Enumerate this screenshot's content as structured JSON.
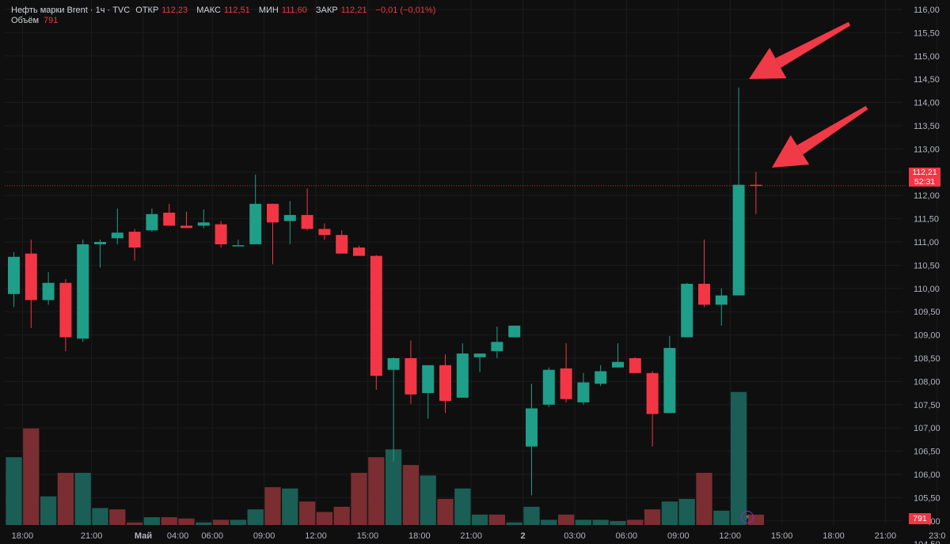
{
  "legend": {
    "symbol": "Нефть марки Brent · 1ч · TVC",
    "open_label": "ОТКР",
    "open": "112,23",
    "high_label": "МАКС",
    "high": "112,51",
    "low_label": "МИН",
    "low": "111,60",
    "close_label": "ЗАКР",
    "close": "112,21",
    "change": "−0,01 (−0,01%)",
    "volume_label": "Объём",
    "volume": "791"
  },
  "price_label": {
    "price": "112,21",
    "countdown": "52:31"
  },
  "volume_label_value": "791",
  "colors": {
    "up": "#1f9e89",
    "down": "#f23645",
    "up_vol": "#1b5e55",
    "down_vol": "#7a2e32",
    "background": "#0f0f0f"
  },
  "chart_data": {
    "type": "candlestick",
    "y_axis": {
      "range": [
        104.0,
        116.2
      ],
      "tick_labels": [
        "116,00",
        "115,50",
        "115,00",
        "114,50",
        "114,00",
        "113,50",
        "113,00",
        "112,50",
        "112,00",
        "111,50",
        "111,00",
        "110,50",
        "110,00",
        "109,50",
        "109,00",
        "108,50",
        "108,00",
        "107,50",
        "107,00",
        "106,50",
        "106,00",
        "105,50",
        "105,00",
        "104,50"
      ],
      "ticks": [
        116.0,
        115.5,
        115.0,
        114.5,
        114.0,
        113.5,
        113.0,
        112.5,
        112.0,
        111.5,
        111.0,
        110.5,
        110.0,
        109.5,
        109.0,
        108.5,
        108.0,
        107.5,
        107.0,
        106.5,
        106.0,
        105.5,
        105.0,
        104.5
      ]
    },
    "x_axis": {
      "tick_labels": [
        "18:00",
        "21:00",
        "Май",
        "04:00",
        "06:00",
        "09:00",
        "12:00",
        "15:00",
        "18:00",
        "21:00",
        "2",
        "03:00",
        "06:00",
        "09:00",
        "12:00",
        "15:00",
        "18:00",
        "21:00",
        "23:0"
      ],
      "tick_bar_index": [
        0.5,
        4.5,
        7.5,
        9.5,
        11.5,
        14.5,
        17.5,
        20.5,
        23.5,
        26.5,
        29.5,
        32.5,
        35.5,
        38.5,
        41.5,
        44.5,
        47.5,
        50.5,
        53.5
      ]
    },
    "candles": [
      {
        "o": 109.88,
        "h": 110.78,
        "l": 109.6,
        "c": 110.68
      },
      {
        "o": 110.75,
        "h": 111.05,
        "l": 109.15,
        "c": 109.75
      },
      {
        "o": 109.75,
        "h": 110.35,
        "l": 109.65,
        "c": 110.12
      },
      {
        "o": 110.12,
        "h": 110.2,
        "l": 108.65,
        "c": 108.95
      },
      {
        "o": 108.92,
        "h": 111.05,
        "l": 108.85,
        "c": 110.95
      },
      {
        "o": 110.95,
        "h": 111.05,
        "l": 110.45,
        "c": 111.0
      },
      {
        "o": 111.08,
        "h": 111.72,
        "l": 110.95,
        "c": 111.2
      },
      {
        "o": 111.22,
        "h": 111.28,
        "l": 110.6,
        "c": 110.88
      },
      {
        "o": 111.25,
        "h": 111.72,
        "l": 111.22,
        "c": 111.6
      },
      {
        "o": 111.63,
        "h": 111.82,
        "l": 111.35,
        "c": 111.35
      },
      {
        "o": 111.35,
        "h": 111.65,
        "l": 111.3,
        "c": 111.3
      },
      {
        "o": 111.35,
        "h": 111.7,
        "l": 111.3,
        "c": 111.42
      },
      {
        "o": 111.38,
        "h": 111.45,
        "l": 110.88,
        "c": 110.95
      },
      {
        "o": 110.93,
        "h": 111.05,
        "l": 110.93,
        "c": 110.93
      },
      {
        "o": 110.95,
        "h": 112.45,
        "l": 110.95,
        "c": 111.82
      },
      {
        "o": 111.82,
        "h": 111.82,
        "l": 110.52,
        "c": 111.42
      },
      {
        "o": 111.45,
        "h": 111.88,
        "l": 110.95,
        "c": 111.58
      },
      {
        "o": 111.58,
        "h": 112.15,
        "l": 111.25,
        "c": 111.28
      },
      {
        "o": 111.28,
        "h": 111.4,
        "l": 111.05,
        "c": 111.15
      },
      {
        "o": 111.15,
        "h": 111.25,
        "l": 110.85,
        "c": 110.75
      },
      {
        "o": 110.88,
        "h": 110.92,
        "l": 110.75,
        "c": 110.7
      },
      {
        "o": 110.7,
        "h": 110.72,
        "l": 107.82,
        "c": 108.12
      },
      {
        "o": 108.25,
        "h": 108.52,
        "l": 106.28,
        "c": 108.5
      },
      {
        "o": 108.5,
        "h": 108.88,
        "l": 107.52,
        "c": 107.72
      },
      {
        "o": 107.75,
        "h": 108.32,
        "l": 107.2,
        "c": 108.35
      },
      {
        "o": 108.35,
        "h": 108.58,
        "l": 107.32,
        "c": 107.58
      },
      {
        "o": 107.65,
        "h": 108.82,
        "l": 107.65,
        "c": 108.6
      },
      {
        "o": 108.52,
        "h": 108.6,
        "l": 108.2,
        "c": 108.6
      },
      {
        "o": 108.65,
        "h": 109.18,
        "l": 108.5,
        "c": 108.85
      },
      {
        "o": 108.95,
        "h": 109.2,
        "l": 108.95,
        "c": 109.2
      },
      {
        "o": 106.6,
        "h": 107.95,
        "l": 105.55,
        "c": 107.42
      },
      {
        "o": 107.5,
        "h": 108.3,
        "l": 107.45,
        "c": 108.25
      },
      {
        "o": 108.28,
        "h": 108.82,
        "l": 107.55,
        "c": 107.62
      },
      {
        "o": 107.55,
        "h": 108.18,
        "l": 107.5,
        "c": 107.98
      },
      {
        "o": 107.95,
        "h": 108.35,
        "l": 107.9,
        "c": 108.22
      },
      {
        "o": 108.3,
        "h": 108.82,
        "l": 108.3,
        "c": 108.42
      },
      {
        "o": 108.5,
        "h": 108.52,
        "l": 108.2,
        "c": 108.18
      },
      {
        "o": 108.18,
        "h": 108.22,
        "l": 106.6,
        "c": 107.3
      },
      {
        "o": 107.32,
        "h": 108.98,
        "l": 107.32,
        "c": 108.72
      },
      {
        "o": 108.95,
        "h": 110.12,
        "l": 108.95,
        "c": 110.1
      },
      {
        "o": 110.1,
        "h": 111.05,
        "l": 109.6,
        "c": 109.65
      },
      {
        "o": 109.65,
        "h": 110.0,
        "l": 109.2,
        "c": 109.85
      },
      {
        "o": 109.85,
        "h": 114.32,
        "l": 109.85,
        "c": 112.23
      },
      {
        "o": 112.23,
        "h": 112.51,
        "l": 111.6,
        "c": 112.21
      }
    ],
    "volumes": [
      {
        "v": 0.26,
        "dir": "up"
      },
      {
        "v": 0.37,
        "dir": "down"
      },
      {
        "v": 0.11,
        "dir": "up"
      },
      {
        "v": 0.2,
        "dir": "down"
      },
      {
        "v": 0.2,
        "dir": "up"
      },
      {
        "v": 0.065,
        "dir": "up"
      },
      {
        "v": 0.06,
        "dir": "down"
      },
      {
        "v": 0.01,
        "dir": "down"
      },
      {
        "v": 0.03,
        "dir": "up"
      },
      {
        "v": 0.03,
        "dir": "down"
      },
      {
        "v": 0.025,
        "dir": "down"
      },
      {
        "v": 0.01,
        "dir": "up"
      },
      {
        "v": 0.02,
        "dir": "down"
      },
      {
        "v": 0.02,
        "dir": "up"
      },
      {
        "v": 0.06,
        "dir": "up"
      },
      {
        "v": 0.145,
        "dir": "down"
      },
      {
        "v": 0.14,
        "dir": "up"
      },
      {
        "v": 0.09,
        "dir": "down"
      },
      {
        "v": 0.05,
        "dir": "down"
      },
      {
        "v": 0.07,
        "dir": "down"
      },
      {
        "v": 0.2,
        "dir": "down"
      },
      {
        "v": 0.26,
        "dir": "down"
      },
      {
        "v": 0.29,
        "dir": "up"
      },
      {
        "v": 0.23,
        "dir": "down"
      },
      {
        "v": 0.19,
        "dir": "up"
      },
      {
        "v": 0.1,
        "dir": "down"
      },
      {
        "v": 0.14,
        "dir": "up"
      },
      {
        "v": 0.04,
        "dir": "up"
      },
      {
        "v": 0.04,
        "dir": "down"
      },
      {
        "v": 0.01,
        "dir": "up"
      },
      {
        "v": 0.07,
        "dir": "up"
      },
      {
        "v": 0.02,
        "dir": "up"
      },
      {
        "v": 0.04,
        "dir": "down"
      },
      {
        "v": 0.02,
        "dir": "up"
      },
      {
        "v": 0.02,
        "dir": "up"
      },
      {
        "v": 0.015,
        "dir": "up"
      },
      {
        "v": 0.02,
        "dir": "down"
      },
      {
        "v": 0.06,
        "dir": "down"
      },
      {
        "v": 0.09,
        "dir": "up"
      },
      {
        "v": 0.1,
        "dir": "up"
      },
      {
        "v": 0.2,
        "dir": "down"
      },
      {
        "v": 0.055,
        "dir": "up"
      },
      {
        "v": 0.51,
        "dir": "up"
      },
      {
        "v": 0.04,
        "dir": "down"
      }
    ],
    "last_price": 112.21,
    "annotations": [
      "arrow pointing to high wick of candle 43",
      "arrow pointing to current candle 44"
    ]
  }
}
